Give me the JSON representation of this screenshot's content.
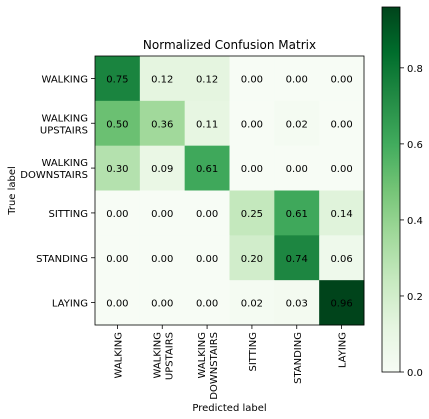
{
  "chart_data": {
    "type": "heatmap",
    "title": "Normalized Confusion Matrix",
    "xlabel": "Predicted label",
    "ylabel": "True label",
    "row_labels": [
      [
        "WALKING"
      ],
      [
        "WALKING",
        "UPSTAIRS"
      ],
      [
        "WALKING",
        "DOWNSTAIRS"
      ],
      [
        "SITTING"
      ],
      [
        "STANDING"
      ],
      [
        "LAYING"
      ]
    ],
    "col_labels": [
      [
        "WALKING"
      ],
      [
        "WALKING",
        "UPSTAIRS"
      ],
      [
        "WALKING",
        "DOWNSTAIRS"
      ],
      [
        "SITTING"
      ],
      [
        "STANDING"
      ],
      [
        "LAYING"
      ]
    ],
    "values": [
      [
        0.75,
        0.12,
        0.12,
        0.0,
        0.0,
        0.0
      ],
      [
        0.5,
        0.36,
        0.11,
        0.0,
        0.02,
        0.0
      ],
      [
        0.3,
        0.09,
        0.61,
        0.0,
        0.0,
        0.0
      ],
      [
        0.0,
        0.0,
        0.0,
        0.25,
        0.61,
        0.14
      ],
      [
        0.0,
        0.0,
        0.0,
        0.2,
        0.74,
        0.06
      ],
      [
        0.0,
        0.0,
        0.0,
        0.02,
        0.03,
        0.96
      ]
    ],
    "colormap": "Greens",
    "colorbar": {
      "range": [
        0.0,
        0.96
      ],
      "ticks": [
        0.0,
        0.2,
        0.4,
        0.6,
        0.8
      ],
      "tick_labels": [
        "0.0",
        "0.2",
        "0.4",
        "0.6",
        "0.8"
      ]
    },
    "grid": false
  }
}
